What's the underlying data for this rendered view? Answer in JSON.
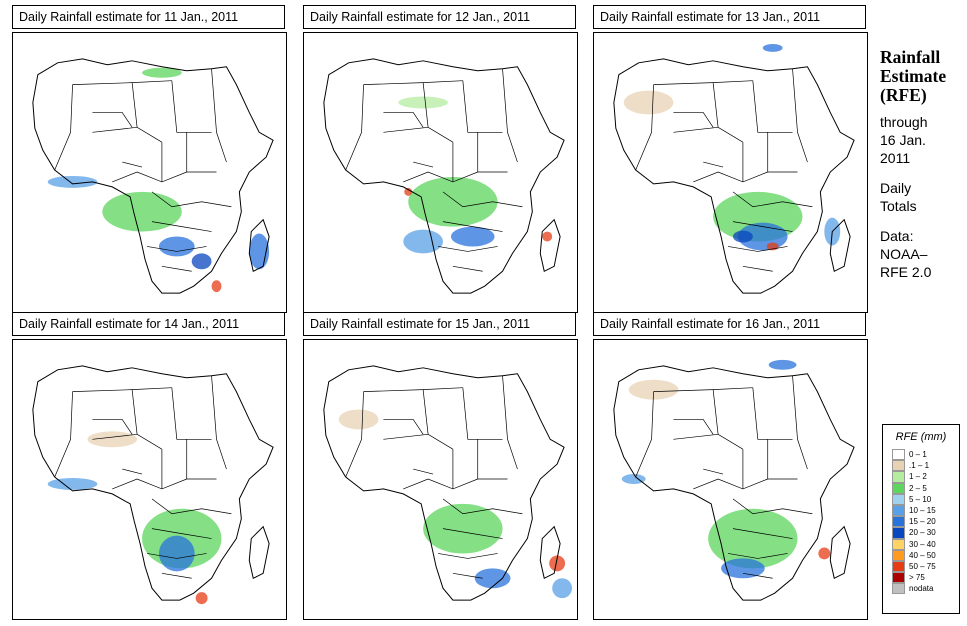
{
  "panels": [
    {
      "title": "Daily Rainfall estimate for  11 Jan., 2011"
    },
    {
      "title": "Daily Rainfall estimate for  12 Jan., 2011"
    },
    {
      "title": "Daily Rainfall estimate for  13 Jan., 2011"
    },
    {
      "title": "Daily Rainfall estimate for  14 Jan., 2011"
    },
    {
      "title": "Daily Rainfall estimate for  15 Jan., 2011"
    },
    {
      "title": "Daily Rainfall estimate for  16 Jan., 2011"
    }
  ],
  "sidebar": {
    "heading_1": "Rainfall",
    "heading_2": "Estimate",
    "heading_3": "(RFE)",
    "through_label": "through",
    "date_line_1": "16 Jan.",
    "date_line_2": "2011",
    "totals_line_1": "Daily",
    "totals_line_2": "Totals",
    "data_label": "Data:",
    "source_line_1": "NOAA–",
    "source_line_2": "RFE 2.0"
  },
  "legend": {
    "title": "RFE (mm)",
    "items": [
      {
        "label": "0 – 1",
        "color": "#ffffff"
      },
      {
        "label": ".1 – 1",
        "color": "#e8d2b4"
      },
      {
        "label": "1 – 2",
        "color": "#b4eca0"
      },
      {
        "label": "2 – 5",
        "color": "#5cd65c"
      },
      {
        "label": "5 – 10",
        "color": "#a0d2f0"
      },
      {
        "label": "10 – 15",
        "color": "#5aa0e6"
      },
      {
        "label": "15 – 20",
        "color": "#2873dc"
      },
      {
        "label": "20 – 30",
        "color": "#0a46be"
      },
      {
        "label": "30 – 40",
        "color": "#ffd264"
      },
      {
        "label": "40 – 50",
        "color": "#ff9b1e"
      },
      {
        "label": "50 – 75",
        "color": "#e63c14"
      },
      {
        "label": "> 75",
        "color": "#aa0000"
      },
      {
        "label": "nodata",
        "color": "#c0c0c0"
      }
    ]
  }
}
